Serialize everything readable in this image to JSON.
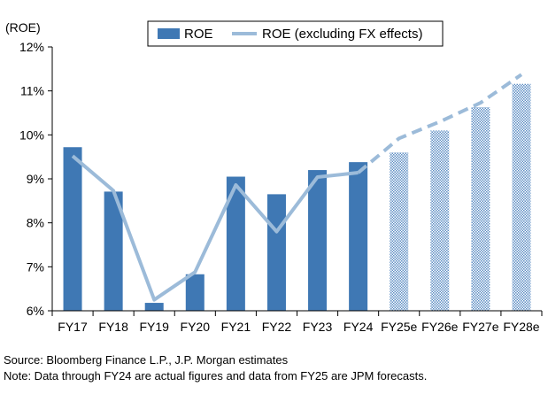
{
  "chart_data": {
    "type": "bar",
    "ylabel": "(ROE)",
    "ylim": [
      6,
      12
    ],
    "yticks": [
      "6%",
      "7%",
      "8%",
      "9%",
      "10%",
      "11%",
      "12%"
    ],
    "categories": [
      "FY17",
      "FY18",
      "FY19",
      "FY20",
      "FY21",
      "FY22",
      "FY23",
      "FY24",
      "FY25e",
      "FY26e",
      "FY27e",
      "FY28e"
    ],
    "series": [
      {
        "name": "ROE",
        "type": "bar",
        "values": [
          9.72,
          8.71,
          6.18,
          6.83,
          9.05,
          8.65,
          9.2,
          9.38,
          9.6,
          10.1,
          10.63,
          11.16
        ],
        "forecast_from_index": 8
      },
      {
        "name": "ROE (excluding FX effects)",
        "type": "line",
        "values": [
          9.52,
          8.73,
          6.25,
          6.88,
          8.86,
          7.8,
          9.04,
          9.14,
          9.92,
          10.3,
          10.73,
          11.37
        ],
        "forecast_from_index": 8
      }
    ],
    "colors": {
      "bar": "#3F78B4",
      "line": "#9CBBD9",
      "forecast_hatch": "#7FA6CF"
    },
    "grid": false,
    "legend": "top"
  },
  "notes": {
    "source": "Source: Bloomberg Finance L.P., J.P. Morgan estimates",
    "note": "Note: Data through FY24 are actual figures and data from FY25 are JPM forecasts."
  }
}
